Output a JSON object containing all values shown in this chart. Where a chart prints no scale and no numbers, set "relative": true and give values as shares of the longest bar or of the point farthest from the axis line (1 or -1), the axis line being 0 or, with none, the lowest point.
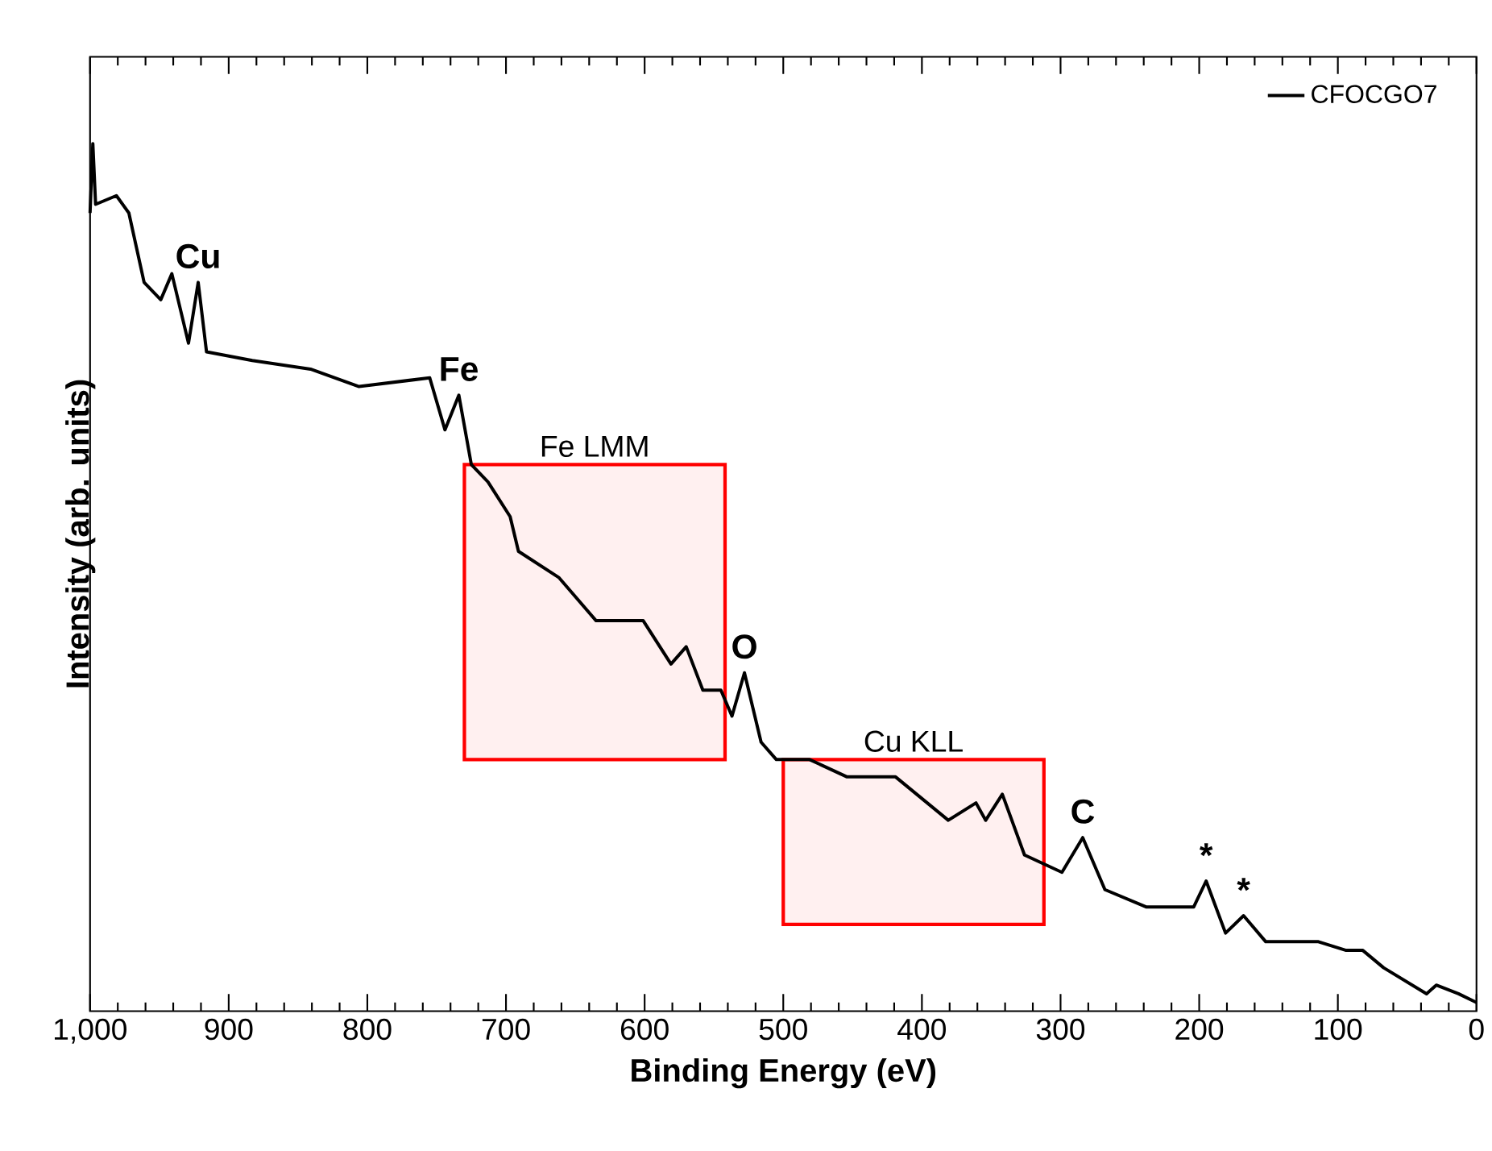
{
  "chart_data": {
    "type": "line",
    "relative": true,
    "xlabel": "Binding Energy (eV)",
    "ylabel": "Intensity (arb. units)",
    "x": [
      1000,
      998,
      996,
      981,
      972,
      961,
      949,
      941,
      929,
      922,
      916,
      883,
      841,
      806,
      755,
      744,
      734,
      725,
      713,
      709,
      697,
      691,
      662,
      635,
      601,
      581,
      570,
      558,
      545,
      537,
      528,
      516,
      505,
      481,
      454,
      419,
      381,
      361,
      354,
      342,
      326,
      299,
      284,
      268,
      238,
      204,
      195,
      181,
      168,
      152,
      114,
      94,
      82,
      67,
      36,
      29,
      13,
      0
    ],
    "series": [
      {
        "name": "CFOCGO7",
        "color": "#000000",
        "values": [
          0.92,
          1,
          0.93,
          0.94,
          0.92,
          0.84,
          0.82,
          0.85,
          0.77,
          0.84,
          0.76,
          0.75,
          0.74,
          0.72,
          0.73,
          0.67,
          0.71,
          0.63,
          0.61,
          0.6,
          0.57,
          0.53,
          0.5,
          0.45,
          0.45,
          0.4,
          0.42,
          0.37,
          0.37,
          0.34,
          0.39,
          0.31,
          0.29,
          0.29,
          0.27,
          0.27,
          0.22,
          0.24,
          0.22,
          0.25,
          0.18,
          0.16,
          0.2,
          0.14,
          0.12,
          0.12,
          0.15,
          0.09,
          0.11,
          0.08,
          0.08,
          0.07,
          0.07,
          0.05,
          0.02,
          0.03,
          0.02,
          0.01
        ]
      }
    ],
    "xlim": [
      1000,
      0
    ],
    "xticks": [
      {
        "value": 1000,
        "label": "1,000"
      },
      900,
      800,
      700,
      600,
      500,
      400,
      300,
      200,
      100,
      0
    ],
    "legend": "top right",
    "grid": false,
    "marker": "none",
    "line_style": "solid",
    "bands": [
      {
        "axis": "x",
        "from": 730,
        "to": 542,
        "label": "Fe LMM",
        "color": "#ff0000"
      },
      {
        "axis": "x",
        "from": 500,
        "to": 312,
        "label": "Cu KLL",
        "color": "#ff0000"
      }
    ],
    "annotations": [
      {
        "text": "Cu",
        "x": 922,
        "y": 0.84
      },
      {
        "text": "Fe",
        "x": 734,
        "y": 0.71
      },
      {
        "text": "O",
        "x": 528,
        "y": 0.39
      },
      {
        "text": "C",
        "x": 284,
        "y": 0.2
      },
      {
        "text": "*",
        "x": 195,
        "y": 0.15
      },
      {
        "text": "*",
        "x": 168,
        "y": 0.11
      }
    ]
  }
}
